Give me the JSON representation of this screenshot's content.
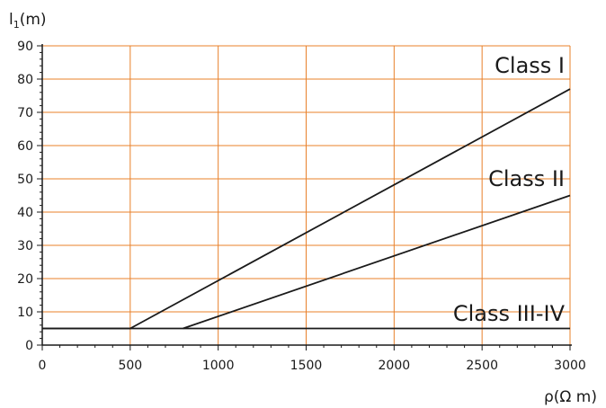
{
  "chart_data": {
    "type": "line",
    "xlabel": "ρ(Ω m)",
    "ylabel": {
      "main": "l",
      "subscript": "1",
      "suffix": "(m)"
    },
    "xlim": [
      0,
      3000
    ],
    "ylim": [
      0,
      90
    ],
    "x_ticks": [
      0,
      500,
      1000,
      1500,
      2000,
      2500,
      3000
    ],
    "y_ticks": [
      0,
      10,
      20,
      30,
      40,
      50,
      60,
      70,
      80,
      90
    ],
    "x_minor_step": 100,
    "y_minor_step": 2,
    "grid": true,
    "colors": {
      "grid": "#e8802a",
      "axis": "#1a1a1a",
      "series": "#1a1a1a"
    },
    "series": [
      {
        "name": "Class I",
        "points": [
          [
            0,
            5
          ],
          [
            500,
            5
          ],
          [
            3000,
            77
          ]
        ]
      },
      {
        "name": "Class II",
        "points": [
          [
            800,
            5
          ],
          [
            3000,
            45
          ]
        ]
      },
      {
        "name": "Class III-IV",
        "points": [
          [
            0,
            5
          ],
          [
            3000,
            5
          ]
        ]
      }
    ],
    "series_labels": [
      {
        "name": "Class I",
        "x": 3000,
        "y": 84
      },
      {
        "name": "Class II",
        "x": 3000,
        "y": 50
      },
      {
        "name": "Class III-IV",
        "x": 3000,
        "y": 9.5
      }
    ]
  }
}
